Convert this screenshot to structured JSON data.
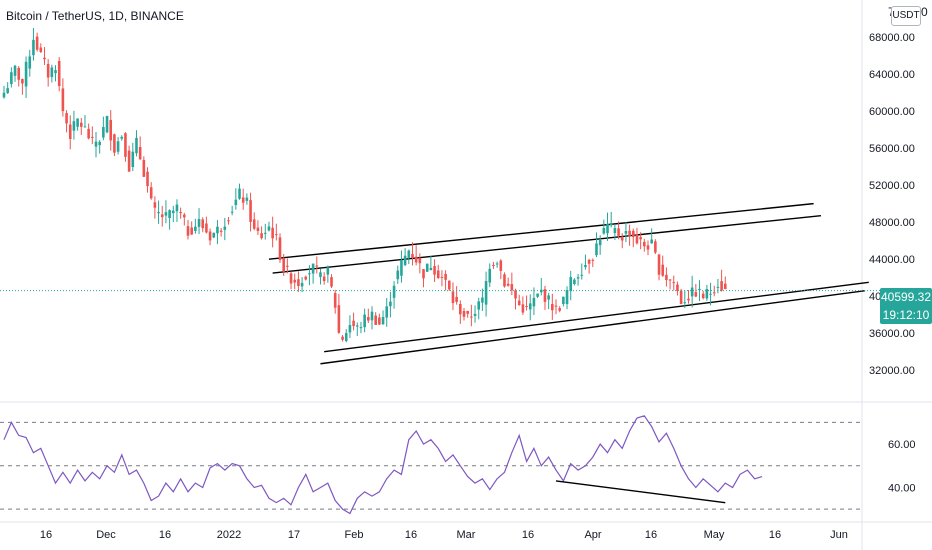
{
  "header": {
    "title": "Bitcoin / TetherUS, 1D, BINANCE"
  },
  "price_axis": {
    "top_label": "7",
    "top_label_suffix": "0",
    "currency": "USDT",
    "last_price": "40599.32",
    "countdown": "19:12:10"
  },
  "colors": {
    "up": "#26a69a",
    "down": "#ef5350",
    "rsi": "#7e57c2",
    "trendline": "#000000",
    "price_line": "#26a69a"
  },
  "chart_data": [
    {
      "type": "candlestick",
      "title": "Bitcoin / TetherUS, 1D, BINANCE",
      "y_ticks": [
        32000,
        36000,
        40000,
        44000,
        48000,
        52000,
        56000,
        60000,
        64000,
        68000
      ],
      "y_tick_labels": [
        "32000.00",
        "36000.00",
        "40000.00",
        "44000.00",
        "48000.00",
        "52000.00",
        "56000.00",
        "60000.00",
        "64000.00",
        "68000.00"
      ],
      "ylim": [
        29000,
        72000
      ],
      "x_ticks": [
        "16",
        "Dec",
        "16",
        "2022",
        "17",
        "Feb",
        "16",
        "Mar",
        "16",
        "Apr",
        "16",
        "May",
        "16",
        "Jun"
      ],
      "last_price": 40599.32,
      "close_path": [
        [
          0,
          62000
        ],
        [
          3,
          64500
        ],
        [
          5,
          63000
        ],
        [
          8,
          68000
        ],
        [
          10,
          66000
        ],
        [
          12,
          64000
        ],
        [
          14,
          65000
        ],
        [
          16,
          60000
        ],
        [
          18,
          57500
        ],
        [
          20,
          59000
        ],
        [
          22,
          58000
        ],
        [
          24,
          56500
        ],
        [
          26,
          57000
        ],
        [
          28,
          59000
        ],
        [
          30,
          56000
        ],
        [
          32,
          57500
        ],
        [
          34,
          54000
        ],
        [
          36,
          56500
        ],
        [
          38,
          53500
        ],
        [
          40,
          50000
        ],
        [
          41,
          49000
        ],
        [
          44,
          48500
        ],
        [
          47,
          49500
        ],
        [
          50,
          47000
        ],
        [
          53,
          48000
        ],
        [
          56,
          46500
        ],
        [
          59,
          47500
        ],
        [
          62,
          49500
        ],
        [
          64,
          51000
        ],
        [
          66,
          50000
        ],
        [
          68,
          47000
        ],
        [
          70,
          46500
        ],
        [
          72,
          47500
        ],
        [
          74,
          46000
        ],
        [
          76,
          43000
        ],
        [
          78,
          42000
        ],
        [
          80,
          41500
        ],
        [
          82,
          42500
        ],
        [
          84,
          43000
        ],
        [
          86,
          42000
        ],
        [
          88,
          42500
        ],
        [
          90,
          39000
        ],
        [
          91,
          36000
        ],
        [
          92,
          35500
        ],
        [
          94,
          37000
        ],
        [
          96,
          36500
        ],
        [
          98,
          37500
        ],
        [
          100,
          38000
        ],
        [
          102,
          37000
        ],
        [
          104,
          38500
        ],
        [
          106,
          41500
        ],
        [
          108,
          43500
        ],
        [
          110,
          45000
        ],
        [
          112,
          44000
        ],
        [
          114,
          42500
        ],
        [
          116,
          43500
        ],
        [
          118,
          42500
        ],
        [
          120,
          41500
        ],
        [
          122,
          39500
        ],
        [
          124,
          38500
        ],
        [
          126,
          37500
        ],
        [
          128,
          38500
        ],
        [
          130,
          39500
        ],
        [
          132,
          43500
        ],
        [
          134,
          44000
        ],
        [
          136,
          41500
        ],
        [
          138,
          40500
        ],
        [
          140,
          39000
        ],
        [
          142,
          38500
        ],
        [
          144,
          39500
        ],
        [
          146,
          40500
        ],
        [
          148,
          39500
        ],
        [
          150,
          38500
        ],
        [
          152,
          39500
        ],
        [
          154,
          41500
        ],
        [
          156,
          42500
        ],
        [
          158,
          43500
        ],
        [
          160,
          44500
        ],
        [
          162,
          46500
        ],
        [
          164,
          47500
        ],
        [
          166,
          47000
        ],
        [
          168,
          46500
        ],
        [
          170,
          47000
        ],
        [
          172,
          46000
        ],
        [
          174,
          45500
        ],
        [
          176,
          45500
        ],
        [
          178,
          43000
        ],
        [
          180,
          42000
        ],
        [
          182,
          41500
        ],
        [
          184,
          39500
        ],
        [
          186,
          40000
        ],
        [
          188,
          40500
        ],
        [
          190,
          40000
        ],
        [
          192,
          40500
        ],
        [
          194,
          41500
        ],
        [
          196,
          40600
        ]
      ],
      "trend_channels": [
        {
          "x1": 72,
          "y1": 44000,
          "x2": 220,
          "y2": 50000
        },
        {
          "x1": 73,
          "y1": 42500,
          "x2": 222,
          "y2": 48700
        },
        {
          "x1": 87,
          "y1": 34000,
          "x2": 235,
          "y2": 41500
        },
        {
          "x1": 86,
          "y1": 32700,
          "x2": 234,
          "y2": 40600
        }
      ]
    },
    {
      "type": "line",
      "title": "",
      "ylim": [
        25,
        78
      ],
      "y_ticks": [
        40,
        60
      ],
      "y_tick_labels": [
        "40.00",
        "60.00"
      ],
      "levels": [
        30,
        50,
        70
      ],
      "rsi_path": [
        [
          0,
          62
        ],
        [
          2,
          70
        ],
        [
          4,
          64
        ],
        [
          6,
          63
        ],
        [
          8,
          56
        ],
        [
          10,
          58
        ],
        [
          12,
          50
        ],
        [
          14,
          42
        ],
        [
          16,
          47
        ],
        [
          18,
          42
        ],
        [
          20,
          48
        ],
        [
          22,
          43
        ],
        [
          24,
          47
        ],
        [
          26,
          44
        ],
        [
          28,
          50
        ],
        [
          30,
          47
        ],
        [
          32,
          55
        ],
        [
          34,
          46
        ],
        [
          36,
          48
        ],
        [
          38,
          42
        ],
        [
          40,
          34
        ],
        [
          42,
          36
        ],
        [
          44,
          42
        ],
        [
          46,
          38
        ],
        [
          48,
          44
        ],
        [
          50,
          38
        ],
        [
          52,
          42
        ],
        [
          54,
          40
        ],
        [
          56,
          49
        ],
        [
          58,
          51
        ],
        [
          60,
          48
        ],
        [
          62,
          51
        ],
        [
          64,
          50
        ],
        [
          66,
          44
        ],
        [
          68,
          40
        ],
        [
          70,
          41
        ],
        [
          72,
          35
        ],
        [
          74,
          33
        ],
        [
          76,
          35
        ],
        [
          78,
          32
        ],
        [
          80,
          40
        ],
        [
          82,
          46
        ],
        [
          84,
          38
        ],
        [
          86,
          40
        ],
        [
          88,
          42
        ],
        [
          90,
          34
        ],
        [
          92,
          30
        ],
        [
          94,
          28
        ],
        [
          96,
          35
        ],
        [
          98,
          38
        ],
        [
          100,
          36
        ],
        [
          102,
          38
        ],
        [
          104,
          44
        ],
        [
          106,
          48
        ],
        [
          108,
          46
        ],
        [
          110,
          62
        ],
        [
          112,
          66
        ],
        [
          114,
          60
        ],
        [
          116,
          62
        ],
        [
          118,
          58
        ],
        [
          120,
          52
        ],
        [
          122,
          55
        ],
        [
          124,
          50
        ],
        [
          126,
          45
        ],
        [
          128,
          42
        ],
        [
          130,
          44
        ],
        [
          132,
          39
        ],
        [
          134,
          44
        ],
        [
          136,
          47
        ],
        [
          138,
          56
        ],
        [
          140,
          64
        ],
        [
          142,
          52
        ],
        [
          144,
          58
        ],
        [
          146,
          50
        ],
        [
          148,
          54
        ],
        [
          150,
          48
        ],
        [
          152,
          43
        ],
        [
          154,
          51
        ],
        [
          156,
          48
        ],
        [
          158,
          50
        ],
        [
          160,
          54
        ],
        [
          162,
          60
        ],
        [
          164,
          56
        ],
        [
          166,
          62
        ],
        [
          168,
          58
        ],
        [
          170,
          66
        ],
        [
          172,
          72
        ],
        [
          174,
          73
        ],
        [
          176,
          68
        ],
        [
          178,
          61
        ],
        [
          180,
          65
        ],
        [
          182,
          58
        ],
        [
          184,
          50
        ],
        [
          186,
          44
        ],
        [
          188,
          40
        ],
        [
          190,
          44
        ],
        [
          192,
          41
        ],
        [
          194,
          38
        ],
        [
          196,
          42
        ],
        [
          198,
          40
        ],
        [
          200,
          46
        ],
        [
          202,
          48
        ],
        [
          204,
          44
        ],
        [
          206,
          45
        ]
      ],
      "divergence_line": {
        "x1": 150,
        "y1": 43,
        "x2": 196,
        "y2": 33
      }
    }
  ]
}
